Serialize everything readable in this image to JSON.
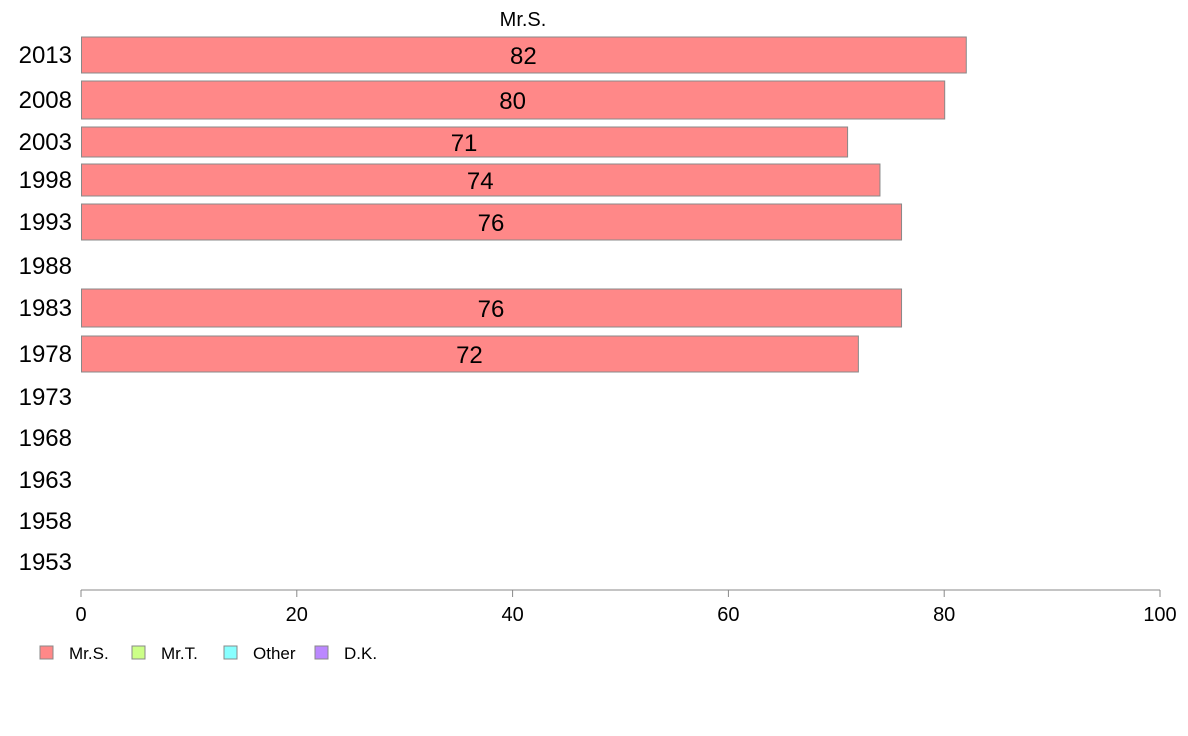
{
  "chart_data": {
    "type": "bar",
    "orientation": "horizontal",
    "title": "Mr.S.",
    "categories": [
      "2013",
      "2008",
      "2003",
      "1998",
      "1993",
      "1988",
      "1983",
      "1978",
      "1973",
      "1968",
      "1963",
      "1958",
      "1953"
    ],
    "series": [
      {
        "name": "Mr.S.",
        "color": "#FF8888",
        "values": [
          82,
          80,
          71,
          74,
          76,
          null,
          76,
          72,
          null,
          null,
          null,
          null,
          null
        ],
        "labels": [
          "82",
          "80",
          "71",
          "74",
          "76",
          "",
          "76",
          "72",
          "",
          "",
          "",
          "",
          ""
        ]
      }
    ],
    "xlim": [
      0,
      100
    ],
    "x_ticks": [
      "0",
      "20",
      "40",
      "60",
      "80",
      "100"
    ],
    "grid": false,
    "legend": {
      "placement": "bottom-left",
      "entries": [
        {
          "label": "Mr.S.",
          "color": "#FF8888"
        },
        {
          "label": "Mr.T.",
          "color": "#CCFF88"
        },
        {
          "label": "Other",
          "color": "#88FFFF"
        },
        {
          "label": "D.K.",
          "color": "#BB88FF"
        }
      ]
    }
  }
}
